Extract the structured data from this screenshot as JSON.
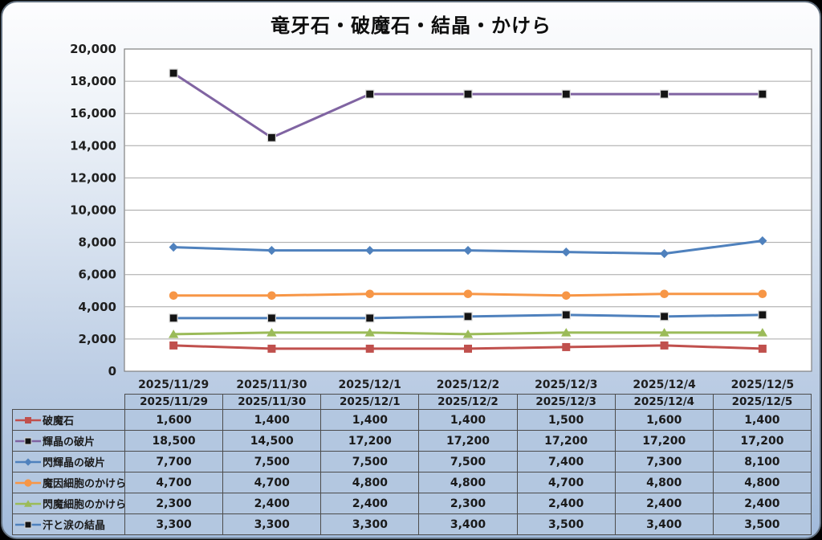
{
  "chart_data": {
    "type": "line",
    "title": "竜牙石・破魔石・結晶・かけら",
    "categories": [
      "2025/11/29",
      "2025/11/30",
      "2025/12/1",
      "2025/12/2",
      "2025/12/3",
      "2025/12/4",
      "2025/12/5"
    ],
    "series": [
      {
        "name": "破魔石",
        "values": [
          1600,
          1400,
          1400,
          1400,
          1500,
          1600,
          1400
        ],
        "color": "#C0504D",
        "marker": "square",
        "marker_color": "#C0504D"
      },
      {
        "name": "輝晶の破片",
        "values": [
          18500,
          14500,
          17200,
          17200,
          17200,
          17200,
          17200
        ],
        "color": "#8064A2",
        "marker": "square",
        "marker_color": "#141414"
      },
      {
        "name": "閃輝晶の破片",
        "values": [
          7700,
          7500,
          7500,
          7500,
          7400,
          7300,
          8100
        ],
        "color": "#4F81BD",
        "marker": "diamond",
        "marker_color": "#4F81BD"
      },
      {
        "name": "魔因細胞のかけら",
        "values": [
          4700,
          4700,
          4800,
          4800,
          4700,
          4800,
          4800
        ],
        "color": "#F79646",
        "marker": "circle",
        "marker_color": "#F79646"
      },
      {
        "name": "閃魔細胞のかけら",
        "values": [
          2300,
          2400,
          2400,
          2300,
          2400,
          2400,
          2400
        ],
        "color": "#9BBB59",
        "marker": "triangle",
        "marker_color": "#9BBB59"
      },
      {
        "name": "汗と涙の結晶",
        "values": [
          3300,
          3300,
          3300,
          3400,
          3500,
          3400,
          3500
        ],
        "color": "#4F81BD",
        "marker": "square",
        "marker_color": "#141414"
      }
    ],
    "ylim": [
      0,
      20000
    ],
    "ytick_step": 2000,
    "y_ticks": [
      "0",
      "2,000",
      "4,000",
      "6,000",
      "8,000",
      "10,000",
      "12,000",
      "14,000",
      "16,000",
      "18,000",
      "20,000"
    ],
    "grid": true,
    "legend_position": "data-table-left-column",
    "value_format": "thousands-comma"
  },
  "style": {
    "card_gradient_top": "#fdfdfe",
    "card_gradient_bottom": "#a2bbdb",
    "plot_background": "#ffffff",
    "plot_border": "#808080",
    "gridline": "#a6a6a6",
    "table_cell_background": "#b3c7e0",
    "table_border": "#4d4d4d",
    "text_color": "#1f1f1f",
    "marker_outline": "#d9d9d9"
  }
}
